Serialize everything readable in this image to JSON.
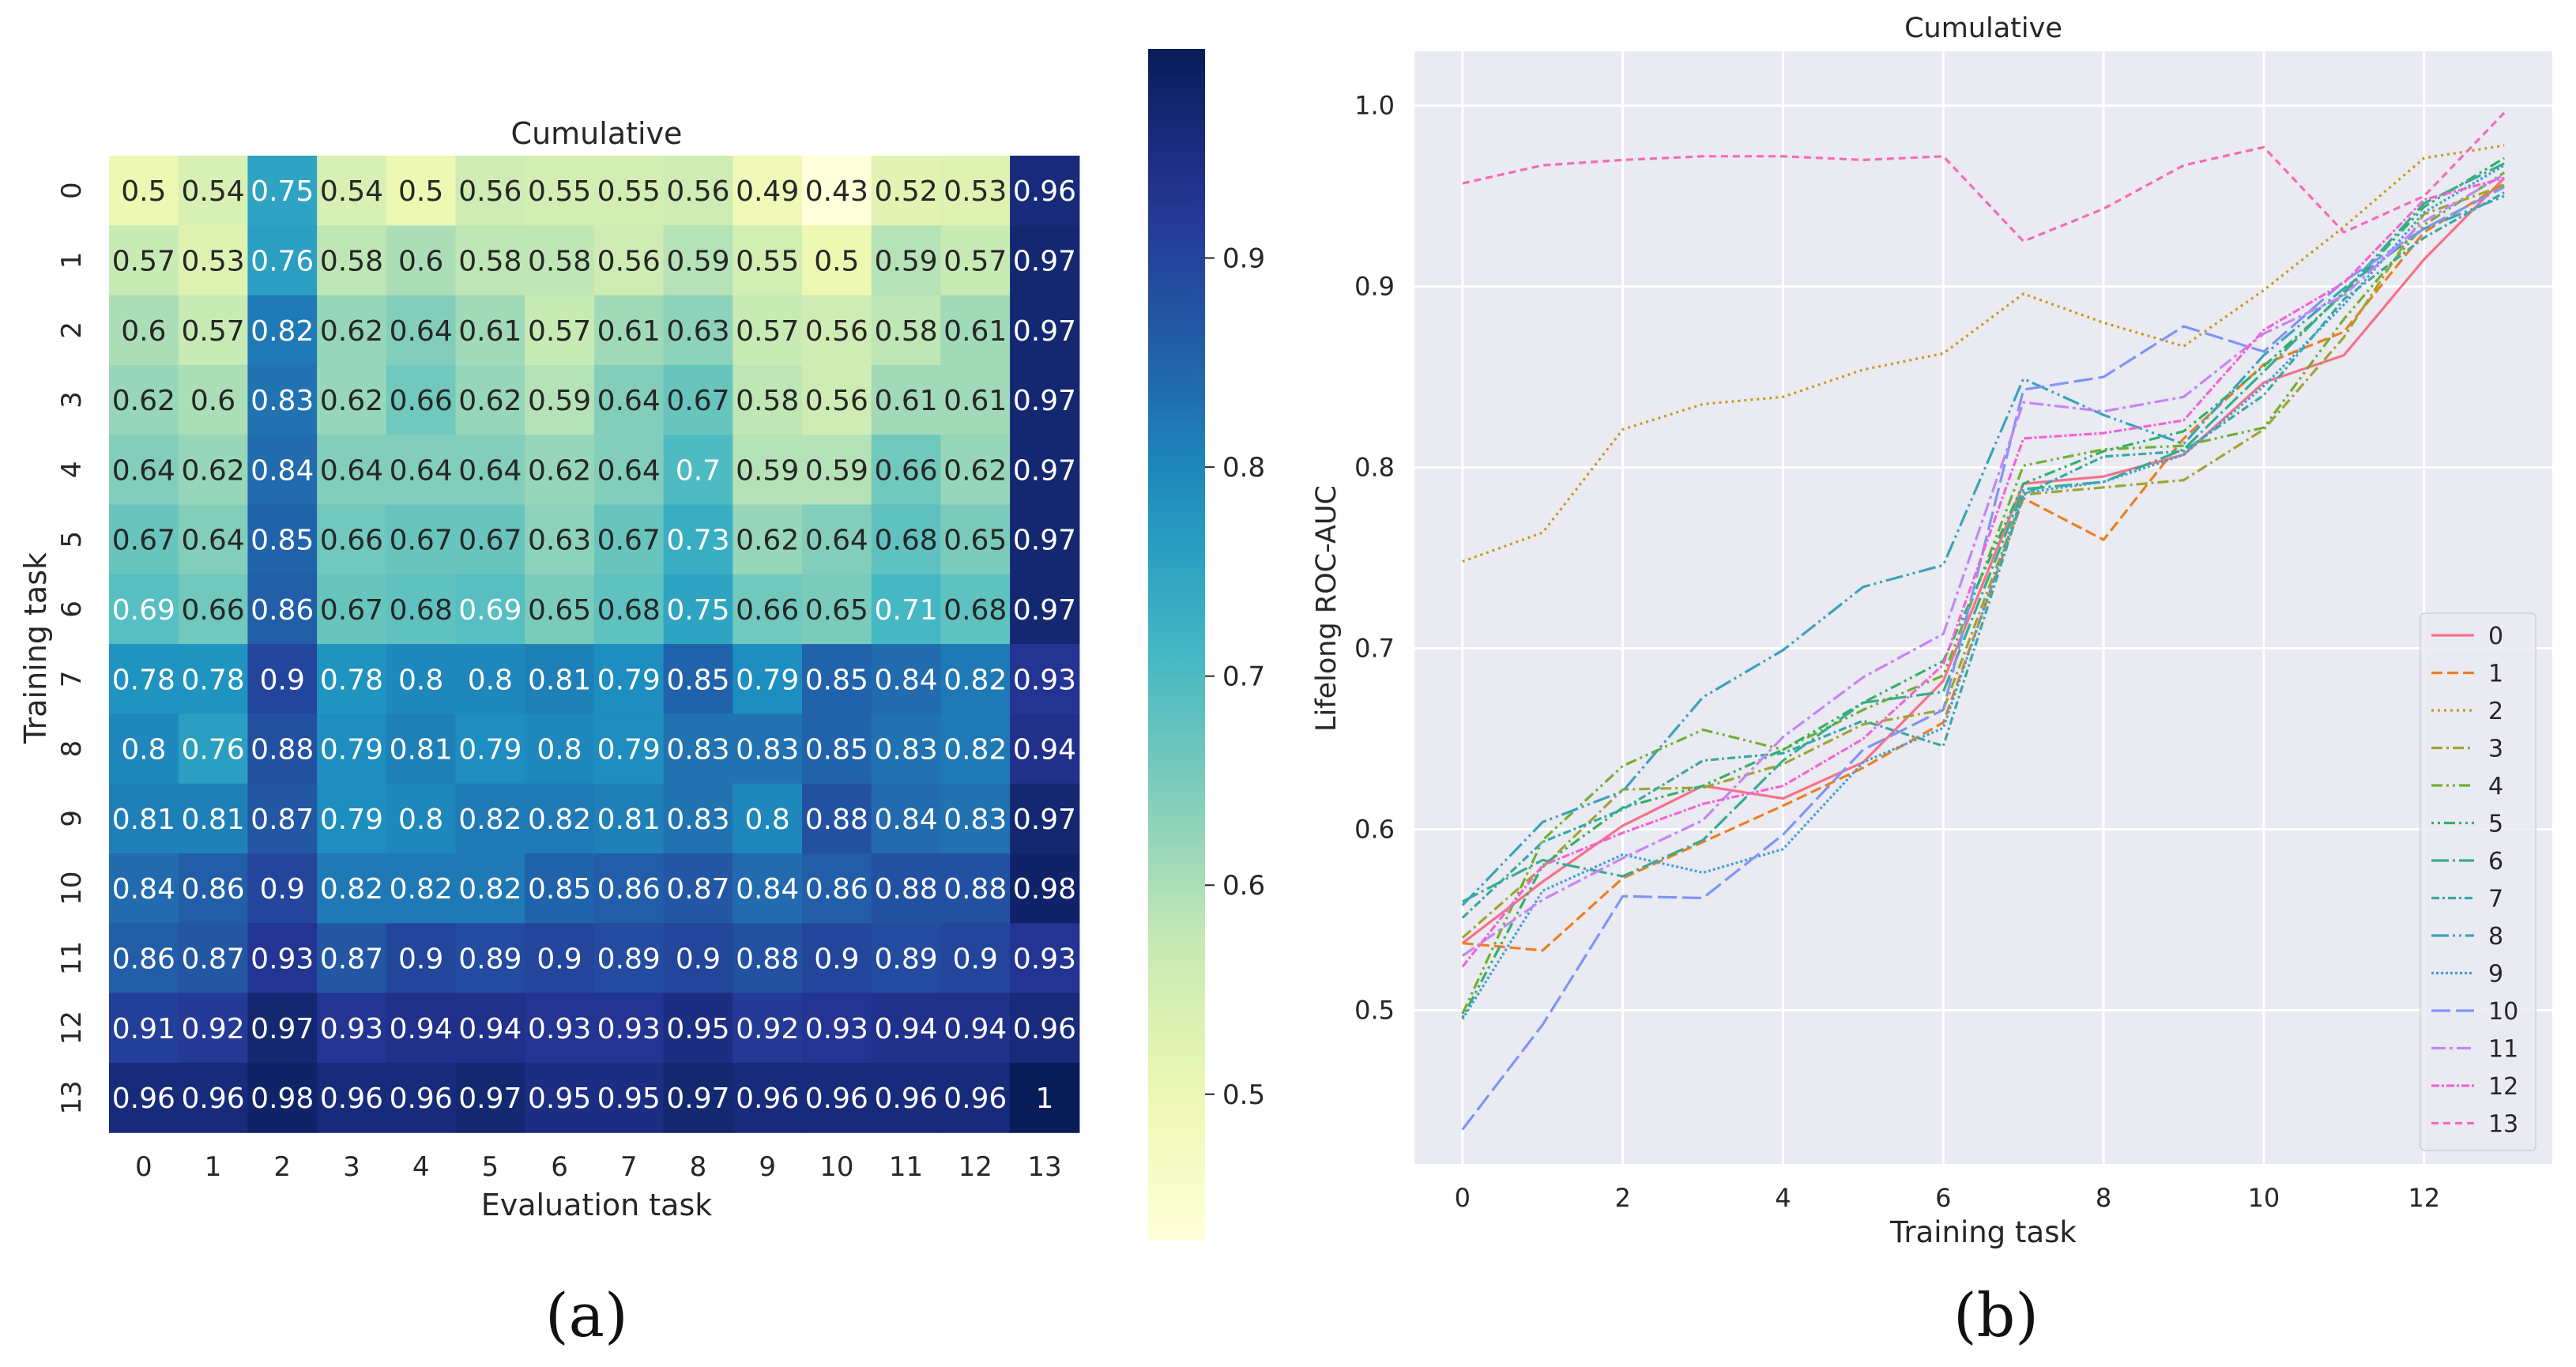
{
  "panel_labels": {
    "a": "(a)",
    "b": "(b)"
  },
  "colors": {
    "background_plot": "#eaeaf2",
    "grid": "#ffffff",
    "text": "#262626",
    "series": [
      "#f77189",
      "#ec7f1e",
      "#c69a1c",
      "#a0a531",
      "#6fb032",
      "#32b166",
      "#36ad8d",
      "#39a9a2",
      "#3ba3b9",
      "#42a0d4",
      "#7f95f5",
      "#c486f5",
      "#f065d6",
      "#f56cb2"
    ],
    "series_dash": [
      "solid",
      "dash",
      "dot",
      "dashdot",
      "dashdotdot",
      "dotdotdash",
      "longdashdot",
      "dashdot2",
      "longdashdotdot",
      "densedot",
      "longdash",
      "dashdotlong",
      "dashdotdense",
      "dashmedium"
    ]
  },
  "chart_data": [
    {
      "type": "heatmap",
      "title": "Cumulative",
      "xlabel": "Evaluation task",
      "ylabel": "Training task",
      "x_ticks": [
        "0",
        "1",
        "2",
        "3",
        "4",
        "5",
        "6",
        "7",
        "8",
        "9",
        "10",
        "11",
        "12",
        "13"
      ],
      "y_ticks": [
        "0",
        "1",
        "2",
        "3",
        "4",
        "5",
        "6",
        "7",
        "8",
        "9",
        "10",
        "11",
        "12",
        "13"
      ],
      "value_labels": [
        [
          "0.5",
          "0.54",
          "0.75",
          "0.54",
          "0.5",
          "0.56",
          "0.55",
          "0.55",
          "0.56",
          "0.49",
          "0.43",
          "0.52",
          "0.53",
          "0.96"
        ],
        [
          "0.57",
          "0.53",
          "0.76",
          "0.58",
          "0.6",
          "0.58",
          "0.58",
          "0.56",
          "0.59",
          "0.55",
          "0.5",
          "0.59",
          "0.57",
          "0.97"
        ],
        [
          "0.6",
          "0.57",
          "0.82",
          "0.62",
          "0.64",
          "0.61",
          "0.57",
          "0.61",
          "0.63",
          "0.57",
          "0.56",
          "0.58",
          "0.61",
          "0.97"
        ],
        [
          "0.62",
          "0.6",
          "0.83",
          "0.62",
          "0.66",
          "0.62",
          "0.59",
          "0.64",
          "0.67",
          "0.58",
          "0.56",
          "0.61",
          "0.61",
          "0.97"
        ],
        [
          "0.64",
          "0.62",
          "0.84",
          "0.64",
          "0.64",
          "0.64",
          "0.62",
          "0.64",
          "0.7",
          "0.59",
          "0.59",
          "0.66",
          "0.62",
          "0.97"
        ],
        [
          "0.67",
          "0.64",
          "0.85",
          "0.66",
          "0.67",
          "0.67",
          "0.63",
          "0.67",
          "0.73",
          "0.62",
          "0.64",
          "0.68",
          "0.65",
          "0.97"
        ],
        [
          "0.69",
          "0.66",
          "0.86",
          "0.67",
          "0.68",
          "0.69",
          "0.65",
          "0.68",
          "0.75",
          "0.66",
          "0.65",
          "0.71",
          "0.68",
          "0.97"
        ],
        [
          "0.78",
          "0.78",
          "0.9",
          "0.78",
          "0.8",
          "0.8",
          "0.81",
          "0.79",
          "0.85",
          "0.79",
          "0.85",
          "0.84",
          "0.82",
          "0.93"
        ],
        [
          "0.8",
          "0.76",
          "0.88",
          "0.79",
          "0.81",
          "0.79",
          "0.8",
          "0.79",
          "0.83",
          "0.83",
          "0.85",
          "0.83",
          "0.82",
          "0.94"
        ],
        [
          "0.81",
          "0.81",
          "0.87",
          "0.79",
          "0.8",
          "0.82",
          "0.82",
          "0.81",
          "0.83",
          "0.8",
          "0.88",
          "0.84",
          "0.83",
          "0.97"
        ],
        [
          "0.84",
          "0.86",
          "0.9",
          "0.82",
          "0.82",
          "0.82",
          "0.85",
          "0.86",
          "0.87",
          "0.84",
          "0.86",
          "0.88",
          "0.88",
          "0.98"
        ],
        [
          "0.86",
          "0.87",
          "0.93",
          "0.87",
          "0.9",
          "0.89",
          "0.9",
          "0.89",
          "0.9",
          "0.88",
          "0.9",
          "0.89",
          "0.9",
          "0.93"
        ],
        [
          "0.91",
          "0.92",
          "0.97",
          "0.93",
          "0.94",
          "0.94",
          "0.93",
          "0.93",
          "0.95",
          "0.92",
          "0.93",
          "0.94",
          "0.94",
          "0.96"
        ],
        [
          "0.96",
          "0.96",
          "0.98",
          "0.96",
          "0.96",
          "0.97",
          "0.95",
          "0.95",
          "0.97",
          "0.96",
          "0.96",
          "0.96",
          "0.96",
          "1"
        ]
      ],
      "colorbar": {
        "range": [
          0.43,
          1.0
        ],
        "ticks": [
          "0.5",
          "0.6",
          "0.7",
          "0.8",
          "0.9"
        ],
        "colormap": "YlGnBu"
      }
    },
    {
      "type": "line",
      "title": "Cumulative",
      "xlabel": "Training task",
      "ylabel": "Lifelong ROC-AUC",
      "x": [
        0,
        1,
        2,
        3,
        4,
        5,
        6,
        7,
        8,
        9,
        10,
        11,
        12,
        13
      ],
      "xlim": [
        -0.6,
        13.6
      ],
      "ylim": [
        0.415,
        1.03
      ],
      "x_ticks": [
        "0",
        "2",
        "4",
        "6",
        "8",
        "10",
        "12"
      ],
      "y_ticks": [
        "0.5",
        "0.6",
        "0.7",
        "0.8",
        "0.9",
        "1.0"
      ],
      "legend_position": "lower-right",
      "series": [
        {
          "name": "0",
          "values": [
            0.537,
            0.571,
            0.602,
            0.624,
            0.617,
            0.637,
            0.682,
            0.791,
            0.795,
            0.807,
            0.847,
            0.862,
            0.915,
            0.96
          ]
        },
        {
          "name": "1",
          "values": [
            0.537,
            0.533,
            0.573,
            0.593,
            0.613,
            0.634,
            0.659,
            0.783,
            0.76,
            0.816,
            0.857,
            0.875,
            0.93,
            0.957
          ]
        },
        {
          "name": "2",
          "values": [
            0.748,
            0.764,
            0.821,
            0.835,
            0.839,
            0.854,
            0.863,
            0.896,
            0.88,
            0.867,
            0.898,
            0.933,
            0.971,
            0.978
          ]
        },
        {
          "name": "3",
          "values": [
            0.54,
            0.579,
            0.622,
            0.623,
            0.636,
            0.658,
            0.666,
            0.785,
            0.789,
            0.793,
            0.821,
            0.872,
            0.94,
            0.956
          ]
        },
        {
          "name": "4",
          "values": [
            0.498,
            0.594,
            0.635,
            0.655,
            0.644,
            0.666,
            0.685,
            0.801,
            0.81,
            0.812,
            0.822,
            0.882,
            0.934,
            0.963
          ]
        },
        {
          "name": "5",
          "values": [
            0.496,
            0.58,
            0.612,
            0.624,
            0.644,
            0.67,
            0.693,
            0.791,
            0.809,
            0.82,
            0.856,
            0.896,
            0.944,
            0.971
          ]
        },
        {
          "name": "6",
          "values": [
            0.56,
            0.583,
            0.574,
            0.594,
            0.638,
            0.67,
            0.676,
            0.788,
            0.792,
            0.81,
            0.853,
            0.897,
            0.946,
            0.968
          ]
        },
        {
          "name": "7",
          "values": [
            0.551,
            0.593,
            0.611,
            0.638,
            0.642,
            0.66,
            0.646,
            0.785,
            0.806,
            0.809,
            0.84,
            0.893,
            0.927,
            0.952
          ]
        },
        {
          "name": "8",
          "values": [
            0.558,
            0.604,
            0.621,
            0.673,
            0.699,
            0.734,
            0.746,
            0.849,
            0.829,
            0.813,
            0.862,
            0.899,
            0.932,
            0.95
          ]
        },
        {
          "name": "9",
          "values": [
            0.495,
            0.566,
            0.586,
            0.576,
            0.589,
            0.637,
            0.656,
            0.786,
            0.792,
            0.807,
            0.845,
            0.89,
            0.941,
            0.967
          ]
        },
        {
          "name": "10",
          "values": [
            0.434,
            0.492,
            0.563,
            0.562,
            0.597,
            0.644,
            0.666,
            0.843,
            0.85,
            0.878,
            0.864,
            0.903,
            0.932,
            0.955
          ]
        },
        {
          "name": "11",
          "values": [
            0.53,
            0.561,
            0.584,
            0.605,
            0.651,
            0.684,
            0.708,
            0.836,
            0.831,
            0.839,
            0.874,
            0.895,
            0.936,
            0.962
          ]
        },
        {
          "name": "12",
          "values": [
            0.524,
            0.58,
            0.598,
            0.614,
            0.624,
            0.65,
            0.691,
            0.816,
            0.819,
            0.826,
            0.876,
            0.902,
            0.948,
            0.96
          ]
        },
        {
          "name": "13",
          "values": [
            0.957,
            0.967,
            0.97,
            0.972,
            0.972,
            0.97,
            0.972,
            0.925,
            0.943,
            0.967,
            0.977,
            0.93,
            0.95,
            0.996
          ]
        }
      ]
    }
  ]
}
